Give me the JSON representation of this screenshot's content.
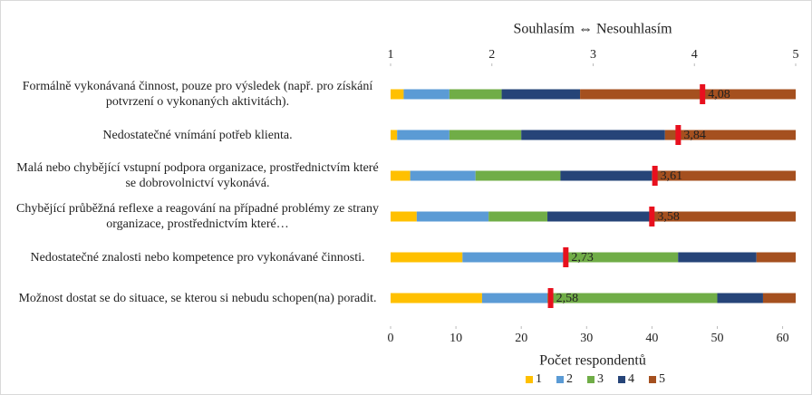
{
  "chart_data": {
    "type": "stacked_bar_horizontal",
    "categories": [
      "Formálně vykonávaná činnost, pouze pro výsledek (např. pro získání potvrzení o vykonaných aktivitách).",
      "Nedostatečné vnímání potřeb klienta.",
      "Malá nebo chybějící vstupní podpora organizace, prostřednictvím které se dobrovolnictví vykonává.",
      "Chybějící průběžná reflexe a reagování na případné problémy ze strany organizace, prostřednictvím které…",
      "Nedostatečné znalosti nebo kompetence pro vykonávané činnosti.",
      "Možnost dostat se do situace, se kterou si nebudu schopen(na) poradit."
    ],
    "series": [
      {
        "name": "1",
        "color": "#ffc000",
        "values": [
          2,
          1,
          3,
          4,
          11,
          14
        ]
      },
      {
        "name": "2",
        "color": "#5b9bd5",
        "values": [
          7,
          8,
          10,
          11,
          16,
          10
        ]
      },
      {
        "name": "3",
        "color": "#70ad47",
        "values": [
          8,
          11,
          13,
          9,
          17,
          26
        ]
      },
      {
        "name": "4",
        "color": "#264478",
        "values": [
          12,
          22,
          14,
          16,
          12,
          7
        ]
      },
      {
        "name": "5",
        "color": "#a5501f",
        "values": [
          33,
          20,
          22,
          22,
          6,
          5
        ]
      }
    ],
    "means": {
      "color": "#e8101e",
      "values": [
        4.08,
        3.84,
        3.61,
        3.58,
        2.73,
        2.58
      ],
      "value_labels": [
        "4,08",
        "3,84",
        "3,61",
        "3,58",
        "2,73",
        "2,58"
      ]
    },
    "xlabel": "Počet respondentů",
    "xlim": [
      0,
      62
    ],
    "xticks": [
      0,
      10,
      20,
      30,
      40,
      50,
      60
    ],
    "x2label": "Souhlasím ⇔ Nesouhlasím",
    "x2lim": [
      1,
      5
    ],
    "x2ticks": [
      1,
      2,
      3,
      4,
      5
    ],
    "legend": "bottom"
  }
}
